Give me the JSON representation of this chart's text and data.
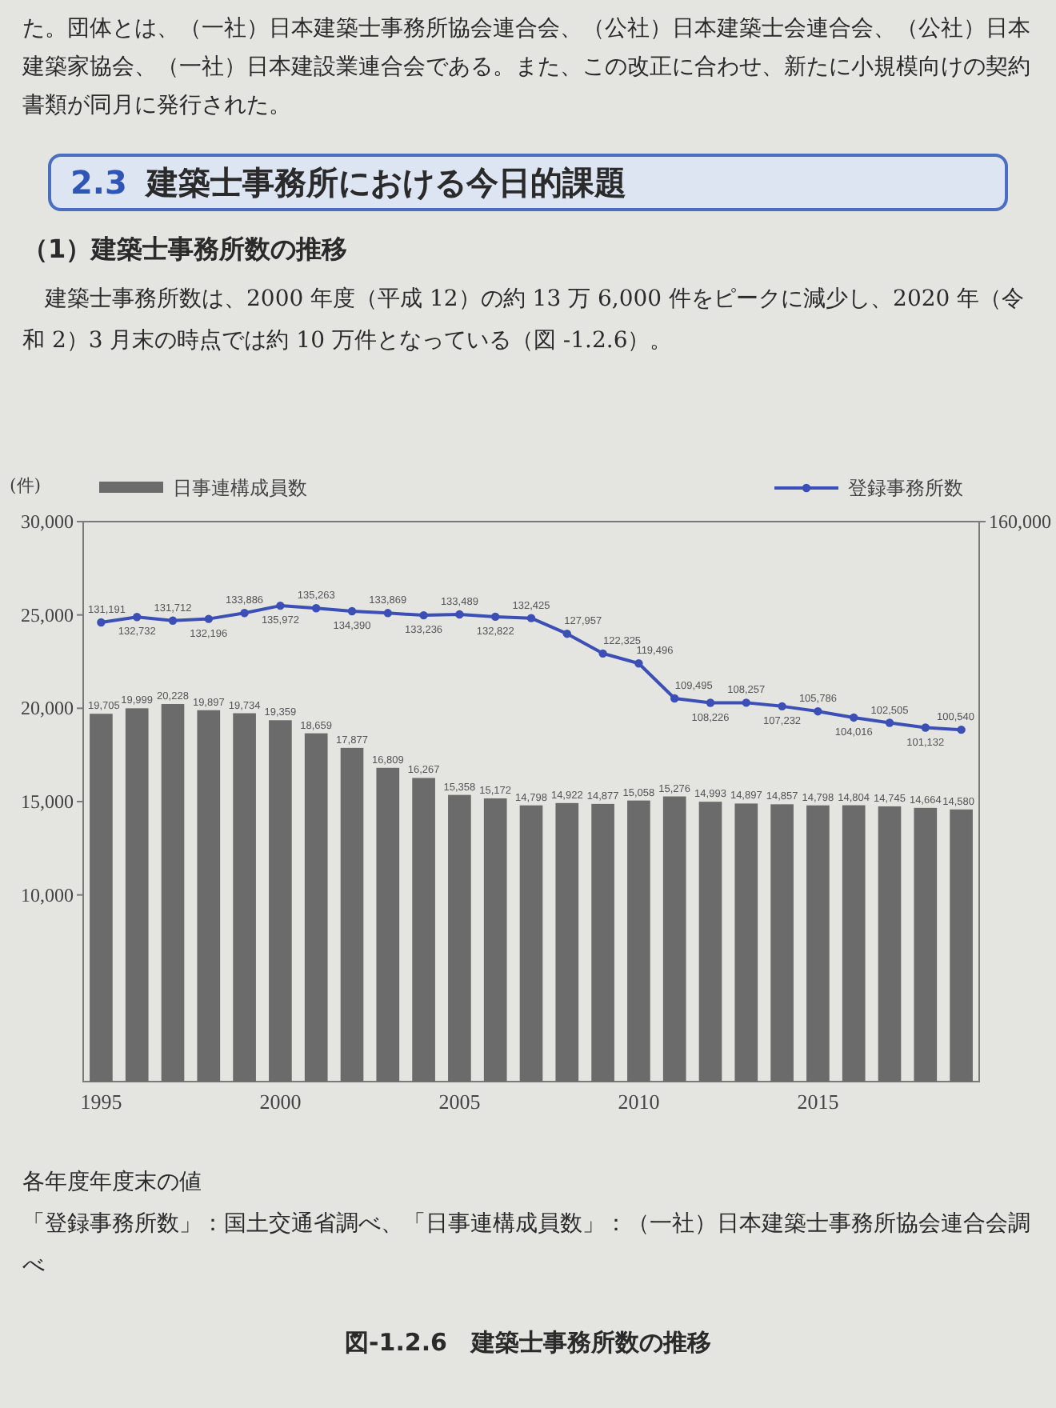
{
  "chart_data": {
    "type": "bar",
    "title": "図-1.2.6　建築士事務所数の推移",
    "annotations": [
      "た。団体とは、（一社）日本建築士事務所協会連合会、（公社）日本建築士会連合会、（公社）日本建築家協会、（一社）日本建設業連合会である。また、この改正に合わせ、新たに小規模向けの契約書類が同月に発行された。",
      "2.3 建築士事務所における今日的課題",
      "（1）建築士事務所数の推移",
      "建築士事務所数は、2000 年度（平成 12）の約 13 万 6,000 件をピークに減少し、2020 年（令和 2）3 月末の時点では約 10 万件となっている（図 -1.2.6）。",
      "各年度年度末の値",
      "「登録事務所数」：国土交通省調べ、「日事連構成員数」：（一社）日本建築士事務所協会連合会調べ"
    ],
    "ylabel": "(件)",
    "categories": [
      "1995",
      null,
      null,
      null,
      null,
      "2000",
      null,
      null,
      null,
      null,
      "2005",
      null,
      null,
      null,
      null,
      "2010",
      null,
      null,
      null,
      null,
      "2015",
      null,
      null,
      null,
      null
    ],
    "series": [
      {
        "name": "日事連構成員数",
        "color": "#6b6b6b",
        "values": [
          19705,
          19999,
          20228,
          19897,
          19734,
          19359,
          18659,
          17877,
          16809,
          16267,
          15358,
          15172,
          14798,
          14922,
          14877,
          15058,
          15276,
          14993,
          14897,
          14857,
          14798,
          14804,
          14745,
          14664,
          14580
        ],
        "value_labels": [
          "19,705",
          "19,999",
          "20,228",
          "19,897",
          "19,734",
          "19,359",
          "18,659",
          "17,877",
          "16,809",
          "16,267",
          "15,358",
          "15,172",
          "14,798",
          "14,922",
          "14,877",
          "15,058",
          "15,276",
          "14,993",
          "14,897",
          "14,857",
          "14,798",
          "14,804",
          "14,745",
          "14,664",
          "14,580"
        ]
      },
      {
        "name": "登録事務所数",
        "type": "line",
        "axis": "y2",
        "color": "#3b4fb5",
        "marker": "circle",
        "values": [
          131191,
          132732,
          131712,
          132196,
          133886,
          135972,
          135263,
          134390,
          133869,
          133236,
          133489,
          132822,
          132425,
          127957,
          122325,
          119496,
          109495,
          108226,
          108257,
          107232,
          105786,
          104016,
          102505,
          101132,
          100540
        ],
        "value_labels": [
          "131,191",
          "132,732",
          "131,712",
          "132,196",
          "133,886",
          "135,972",
          "135,263",
          "134,390",
          "133,869",
          "133,236",
          "133,489",
          "132,822",
          "132,425",
          "127,957",
          "122,325",
          "119,496",
          "109,495",
          "108,226",
          "108,257",
          "107,232",
          "105,786",
          "104,016",
          "102,505",
          "101,132",
          "100,540"
        ]
      }
    ],
    "ylim": [
      0,
      30000
    ],
    "yticks": [
      {
        "value": 10000,
        "label": "10,000"
      },
      {
        "value": 15000,
        "label": "15,000"
      },
      {
        "value": 20000,
        "label": "20,000"
      },
      {
        "value": 25000,
        "label": "25,000"
      },
      {
        "value": 30000,
        "label": "30,000"
      }
    ],
    "y2lim": [
      0,
      160000
    ],
    "y2ticks": [
      {
        "value": 160000,
        "label": "160,000"
      }
    ],
    "legend": "top"
  }
}
